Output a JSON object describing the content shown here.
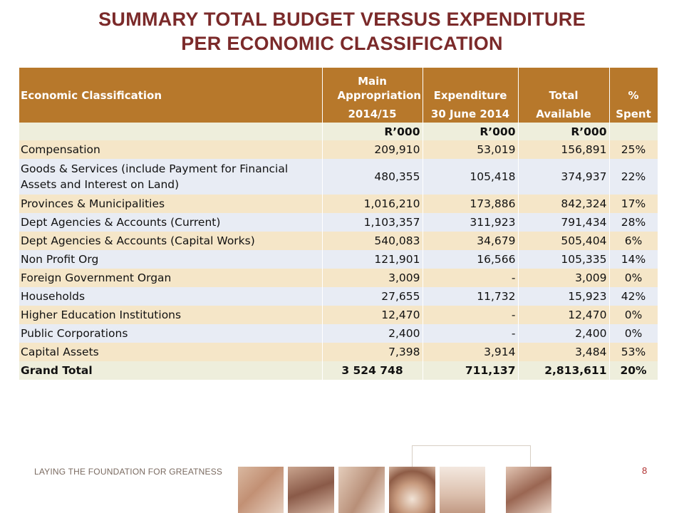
{
  "title": {
    "line1": "SUMMARY TOTAL BUDGET VERSUS EXPENDITURE",
    "line2": "PER ECONOMIC CLASSIFICATION"
  },
  "table": {
    "headers": {
      "classification": "Economic Classification",
      "appropriation_top": "Main Appropriation",
      "appropriation_bottom": "2014/15",
      "expenditure_top": "Expenditure",
      "expenditure_bottom": "30 June 2014",
      "total_top": "Total",
      "total_bottom": "Available",
      "pct_top": "%",
      "pct_bottom": "Spent"
    },
    "units": {
      "appropriation": "R’000",
      "expenditure": "R’000",
      "total": "R’000"
    },
    "rows": [
      {
        "classification": "Compensation",
        "appropriation": "209,910",
        "expenditure": "53,019",
        "available": "156,891",
        "spent": "25%"
      },
      {
        "classification_line1": "Goods & Services (include Payment for Financial",
        "classification_line2": "Assets and Interest on Land)",
        "appropriation": "480,355",
        "expenditure": "105,418",
        "available": "374,937",
        "spent": "22%"
      },
      {
        "classification": "Provinces & Municipalities",
        "appropriation": "1,016,210",
        "expenditure": "173,886",
        "available": "842,324",
        "spent": "17%"
      },
      {
        "classification": "Dept Agencies & Accounts (Current)",
        "appropriation": "1,103,357",
        "expenditure": "311,923",
        "available": "791,434",
        "spent": "28%"
      },
      {
        "classification": "Dept Agencies & Accounts (Capital Works)",
        "appropriation": "540,083",
        "expenditure": "34,679",
        "available": "505,404",
        "spent": "6%"
      },
      {
        "classification": "Non Profit Org",
        "appropriation": "121,901",
        "expenditure": "16,566",
        "available": "105,335",
        "spent": "14%"
      },
      {
        "classification": "Foreign Government Organ",
        "appropriation": "3,009",
        "expenditure": "-",
        "available": "3,009",
        "spent": "0%"
      },
      {
        "classification": "Households",
        "appropriation": "27,655",
        "expenditure": "11,732",
        "available": "15,923",
        "spent": "42%"
      },
      {
        "classification": "Higher Education Institutions",
        "appropriation": "12,470",
        "expenditure": "-",
        "available": "12,470",
        "spent": "0%"
      },
      {
        "classification": "Public Corporations",
        "appropriation": "2,400",
        "expenditure": "-",
        "available": "2,400",
        "spent": "0%"
      },
      {
        "classification": "Capital Assets",
        "appropriation": "7,398",
        "expenditure": "3,914",
        "available": "3,484",
        "spent": "53%"
      }
    ],
    "total": {
      "classification": "Grand Total",
      "appropriation": "3 524 748",
      "expenditure": "711,137",
      "available": "2,813,611",
      "spent": "20%"
    }
  },
  "footer": {
    "tagline": "LAYING THE FOUNDATION FOR GREATNESS",
    "page_number": "8"
  },
  "colors": {
    "title": "#7b2a2a",
    "header_bg": "#b7782b",
    "row_odd": "#f5e6c8",
    "row_even": "#e8ecf4",
    "units_total_bg": "#eeeedc",
    "page_number": "#b03030"
  }
}
